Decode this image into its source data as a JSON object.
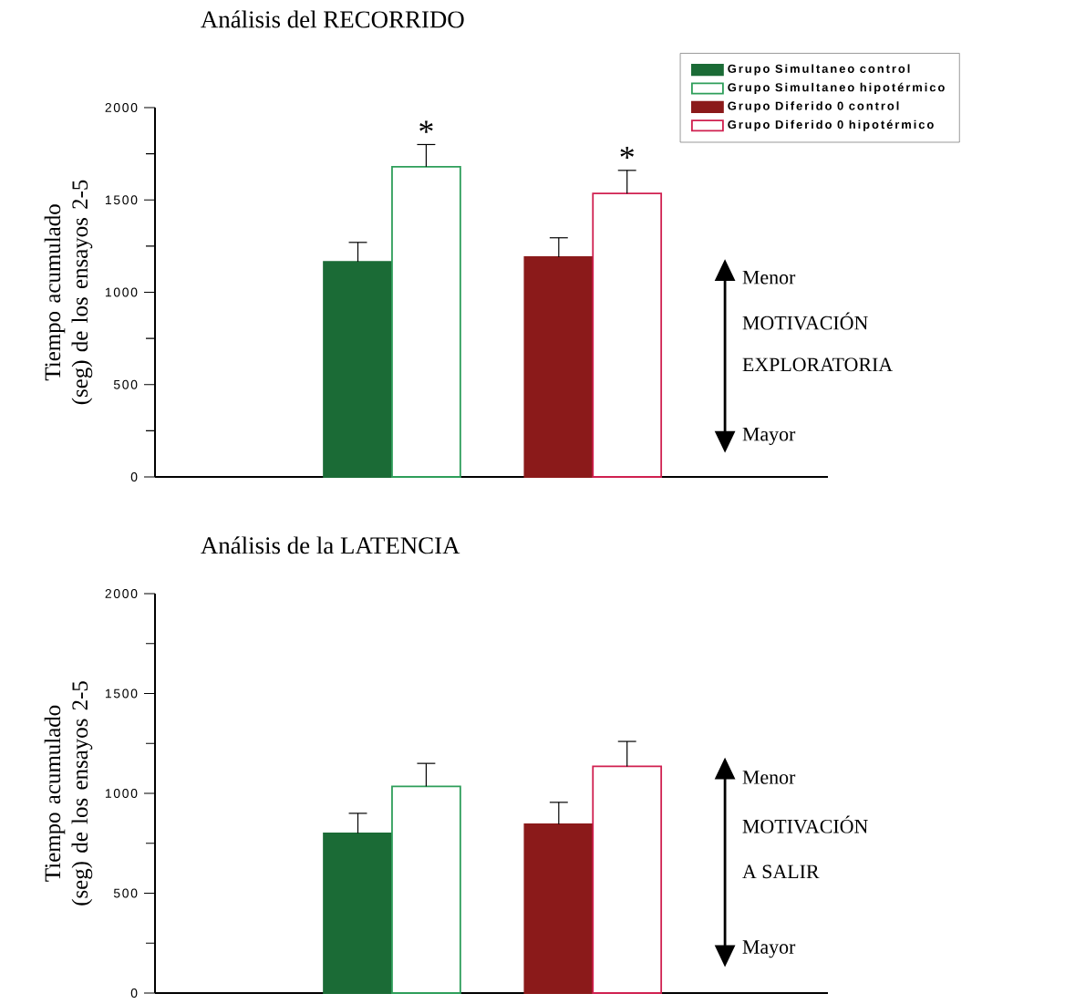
{
  "chart_data": [
    {
      "type": "bar",
      "title": "Análisis del RECORRIDO",
      "ylabel": "Tiempo acumulado (seg) de los ensayos 2-5",
      "categories": [
        null,
        null
      ],
      "series": [
        {
          "name": "Grupo Simultaneo control",
          "color": "#1b6b36",
          "values": [
            1165,
            null
          ],
          "errors": [
            [
              1165,
              1270
            ],
            null
          ]
        },
        {
          "name": "Grupo Simultaneo hipotérmico",
          "color": "#2e9e5a",
          "colors": [
            "#ffffff",
            null
          ],
          "values": [
            1680,
            null
          ],
          "errors": [
            [
              1680,
              1800
            ],
            null
          ],
          "value_labels": [
            "*",
            null
          ]
        },
        {
          "name": "Grupo Diferido 0 control",
          "color": "#8b1a1a",
          "values": [
            null,
            1190
          ],
          "errors": [
            null,
            [
              1190,
              1295
            ]
          ]
        },
        {
          "name": "Grupo Diferido 0 hipotérmico",
          "color": "#d02050",
          "colors": [
            null,
            "#ffffff"
          ],
          "values": [
            null,
            1535
          ],
          "errors": [
            null,
            [
              1535,
              1660
            ]
          ],
          "value_labels": [
            null,
            "*"
          ]
        }
      ],
      "ylim": [
        0,
        2000
      ],
      "yticks": [
        0,
        {
          "value": 250,
          "label": null
        },
        500,
        {
          "value": 750,
          "label": null
        },
        1000,
        {
          "value": 1250,
          "label": null
        },
        1500,
        {
          "value": 1750,
          "label": null
        },
        2000
      ],
      "legend": "top right",
      "annotations": [
        "Menor",
        "MOTIVACIÓN",
        "EXPLORATORIA",
        "Mayor"
      ]
    },
    {
      "type": "bar",
      "title": "Análisis de la LATENCIA",
      "ylabel": "Tiempo acumulado (seg) de los ensayos 2-5",
      "categories": [
        null,
        null
      ],
      "series": [
        {
          "color": "#1b6b36",
          "values": [
            800,
            null
          ],
          "errors": [
            [
              800,
              900
            ],
            null
          ]
        },
        {
          "color": "#2e9e5a",
          "colors": [
            "#ffffff",
            null
          ],
          "values": [
            1035,
            null
          ],
          "errors": [
            [
              1035,
              1150
            ],
            null
          ]
        },
        {
          "color": "#8b1a1a",
          "values": [
            null,
            845
          ],
          "errors": [
            null,
            [
              845,
              955
            ]
          ]
        },
        {
          "color": "#d02050",
          "colors": [
            null,
            "#ffffff"
          ],
          "values": [
            null,
            1135
          ],
          "errors": [
            null,
            [
              1135,
              1260
            ]
          ]
        }
      ],
      "ylim": [
        0,
        2000
      ],
      "yticks": [
        0,
        {
          "value": 250,
          "label": null
        },
        500,
        {
          "value": 750,
          "label": null
        },
        1000,
        {
          "value": 1250,
          "label": null
        },
        1500,
        {
          "value": 1750,
          "label": null
        },
        2000
      ],
      "annotations": [
        "Menor",
        "MOTIVACIÓN",
        "A SALIR",
        "Mayor"
      ]
    }
  ]
}
